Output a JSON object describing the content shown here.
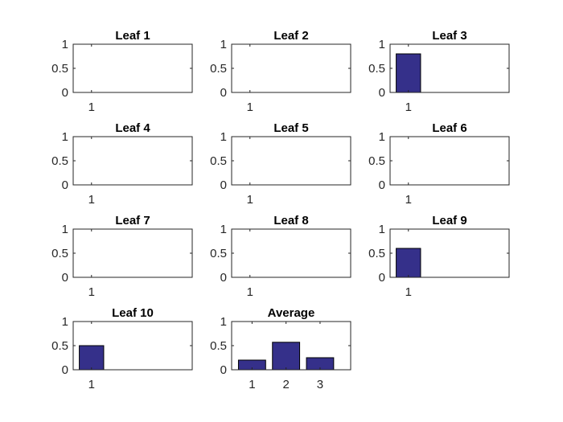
{
  "chart_data": [
    {
      "type": "bar",
      "title": "Leaf 1",
      "categories": [
        "1"
      ],
      "values": [
        0
      ],
      "ylim": [
        0,
        1
      ],
      "yticks": [
        "0",
        "0.5",
        "1"
      ],
      "grid": false
    },
    {
      "type": "bar",
      "title": "Leaf 2",
      "categories": [
        "1"
      ],
      "values": [
        0
      ],
      "ylim": [
        0,
        1
      ],
      "yticks": [
        "0",
        "0.5",
        "1"
      ],
      "grid": false
    },
    {
      "type": "bar",
      "title": "Leaf 3",
      "categories": [
        "1"
      ],
      "values": [
        0.8
      ],
      "ylim": [
        0,
        1
      ],
      "yticks": [
        "0",
        "0.5",
        "1"
      ],
      "grid": false
    },
    {
      "type": "bar",
      "title": "Leaf 4",
      "categories": [
        "1"
      ],
      "values": [
        0
      ],
      "ylim": [
        0,
        1
      ],
      "yticks": [
        "0",
        "0.5",
        "1"
      ],
      "grid": false
    },
    {
      "type": "bar",
      "title": "Leaf 5",
      "categories": [
        "1"
      ],
      "values": [
        0
      ],
      "ylim": [
        0,
        1
      ],
      "yticks": [
        "0",
        "0.5",
        "1"
      ],
      "grid": false
    },
    {
      "type": "bar",
      "title": "Leaf 6",
      "categories": [
        "1"
      ],
      "values": [
        0
      ],
      "ylim": [
        0,
        1
      ],
      "yticks": [
        "0",
        "0.5",
        "1"
      ],
      "grid": false
    },
    {
      "type": "bar",
      "title": "Leaf 7",
      "categories": [
        "1"
      ],
      "values": [
        0
      ],
      "ylim": [
        0,
        1
      ],
      "yticks": [
        "0",
        "0.5",
        "1"
      ],
      "grid": false
    },
    {
      "type": "bar",
      "title": "Leaf 8",
      "categories": [
        "1"
      ],
      "values": [
        0
      ],
      "ylim": [
        0,
        1
      ],
      "yticks": [
        "0",
        "0.5",
        "1"
      ],
      "grid": false
    },
    {
      "type": "bar",
      "title": "Leaf 9",
      "categories": [
        "1"
      ],
      "values": [
        0.6
      ],
      "ylim": [
        0,
        1
      ],
      "yticks": [
        "0",
        "0.5",
        "1"
      ],
      "grid": false
    },
    {
      "type": "bar",
      "title": "Leaf 10",
      "categories": [
        "1"
      ],
      "values": [
        0.5
      ],
      "ylim": [
        0,
        1
      ],
      "yticks": [
        "0",
        "0.5",
        "1"
      ],
      "grid": false
    },
    {
      "type": "bar",
      "title": "Average",
      "categories": [
        "1",
        "2",
        "3"
      ],
      "values": [
        0.2,
        0.57,
        0.25
      ],
      "ylim": [
        0,
        1
      ],
      "yticks": [
        "0",
        "0.5",
        "1"
      ],
      "grid": false
    }
  ],
  "colors": {
    "bar_fill": "#35308a",
    "bar_edge": "#000000",
    "axes": "#262626"
  }
}
